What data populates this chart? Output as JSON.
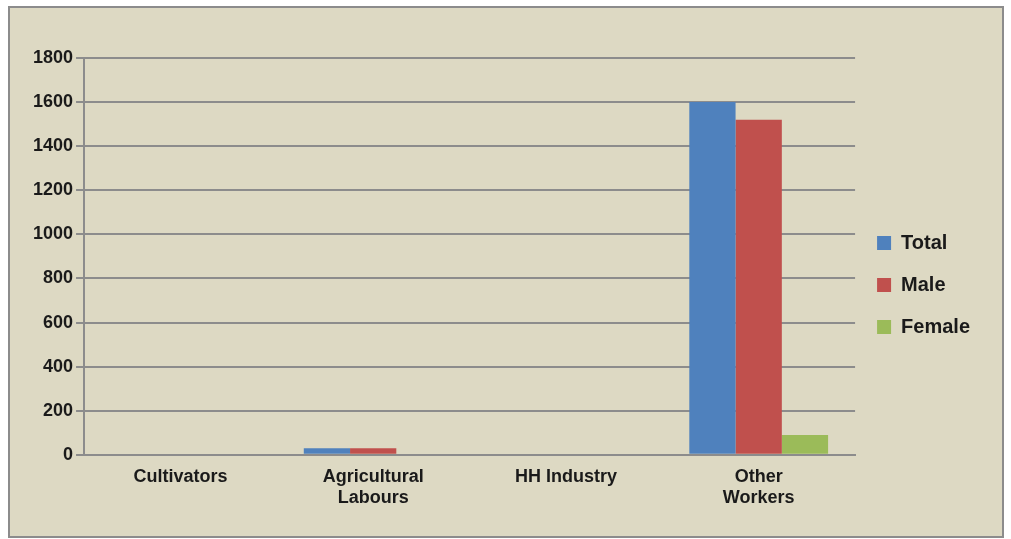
{
  "chart_data": {
    "type": "bar",
    "categories": [
      "Cultivators",
      "Agricultural Labours",
      "HH Industry",
      "Other Workers"
    ],
    "series": [
      {
        "name": "Total",
        "color": "#4f81bd",
        "values": [
          0,
          30,
          0,
          1600
        ]
      },
      {
        "name": "Male",
        "color": "#c0504d",
        "values": [
          0,
          30,
          0,
          1520
        ]
      },
      {
        "name": "Female",
        "color": "#9bbb59",
        "values": [
          0,
          0,
          0,
          90
        ]
      }
    ],
    "ylim": [
      0,
      1800
    ],
    "yticks": [
      0,
      200,
      400,
      600,
      800,
      1000,
      1200,
      1400,
      1600,
      1800
    ],
    "grid": "y",
    "legend": "right"
  }
}
